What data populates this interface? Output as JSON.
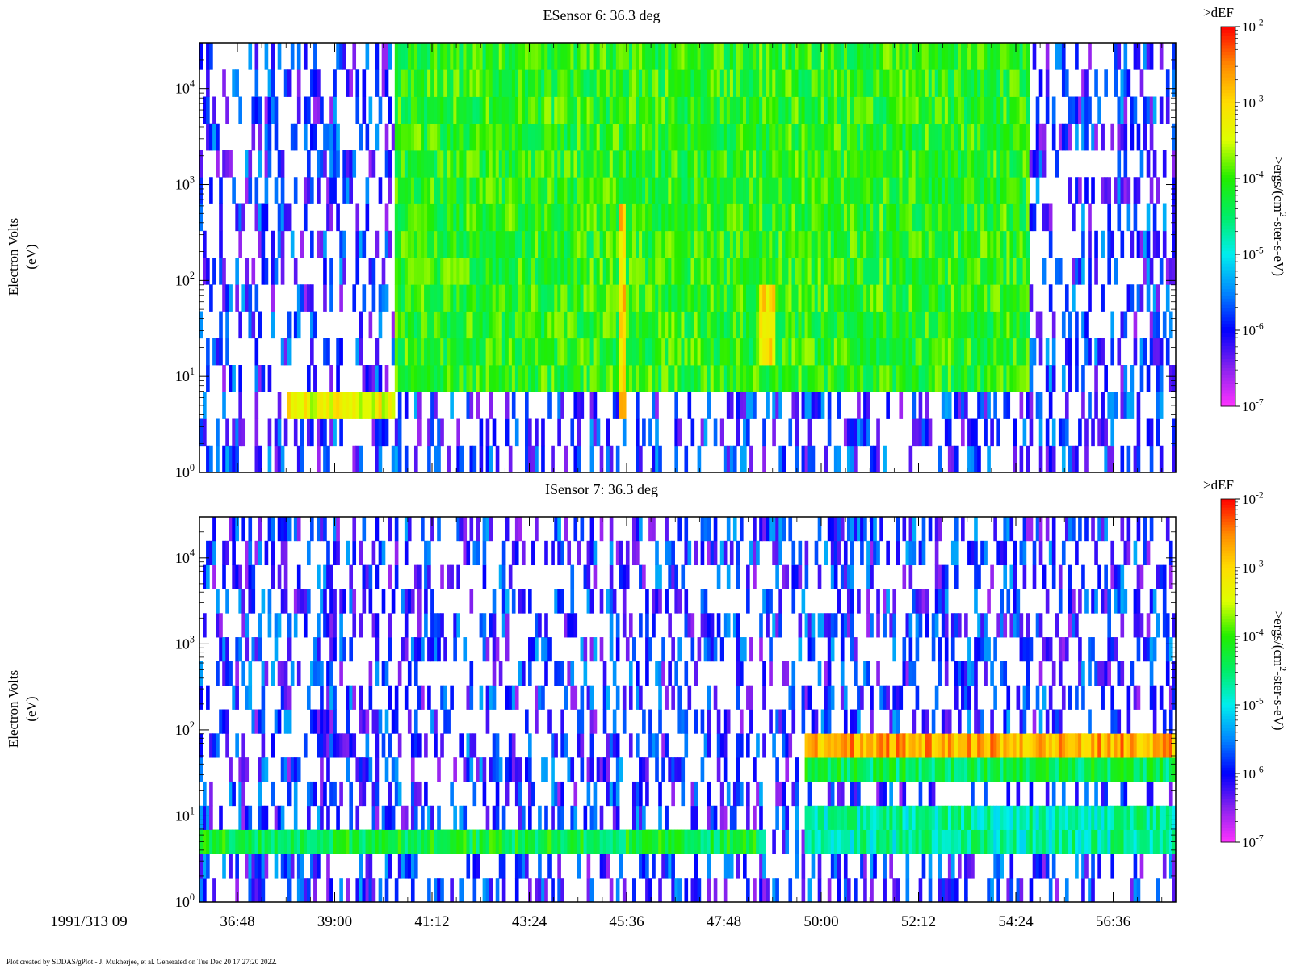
{
  "date_label": "1991/313 09",
  "footer": "Plot created by SDDAS/gPlot - J. Mukherjee, et al.  Generated on Tue Dec 20 17:27:20 2022.",
  "chart_data": [
    {
      "type": "heatmap",
      "title": "ESensor 6: 36.3 deg",
      "ylabel": "Electron Volts",
      "ylabel_unit": "(eV)",
      "yscale": "log",
      "ylim": [
        1,
        30000
      ],
      "y_ticks": [
        {
          "base": "10",
          "exp": "0"
        },
        {
          "base": "10",
          "exp": "1"
        },
        {
          "base": "10",
          "exp": "2"
        },
        {
          "base": "10",
          "exp": "3"
        },
        {
          "base": "10",
          "exp": "4"
        }
      ],
      "x_ticks": [
        "36:48",
        "39:00",
        "41:12",
        "43:24",
        "45:36",
        "47:48",
        "50:00",
        "52:12",
        "54:24",
        "56:36"
      ],
      "colorbar": {
        "label_top": ">dEF",
        "label": ">ergs/(cm-2-ster-s-eV)",
        "label_parts": [
          ">ergs/(cm",
          "2",
          "-ster-s-eV)"
        ],
        "scale": "log",
        "range": [
          1e-07,
          0.01
        ],
        "ticks": [
          {
            "base": "10",
            "exp": "-2"
          },
          {
            "base": "10",
            "exp": "-3"
          },
          {
            "base": "10",
            "exp": "-4"
          },
          {
            "base": "10",
            "exp": "-5"
          },
          {
            "base": "10",
            "exp": "-6"
          },
          {
            "base": "10",
            "exp": "-7"
          }
        ],
        "colors": [
          "#ff33ff",
          "#8822ee",
          "#0000ff",
          "#0088ff",
          "#00eeee",
          "#00ee66",
          "#22ee00",
          "#ddff00",
          "#ffdd00",
          "#ff8800",
          "#ff0000"
        ]
      },
      "features": [
        {
          "t": [
            0.09,
            0.2
          ],
          "e": [
            0.55,
            0.75
          ],
          "value": 0.0005
        },
        {
          "t": [
            0.09,
            0.2
          ],
          "e": [
            0.75,
            0.85
          ],
          "value": 0.0001
        },
        {
          "t": [
            0.2,
            0.85
          ],
          "e": [
            0.85,
            4.35
          ],
          "value": 8e-05
        },
        {
          "t": [
            0.43,
            0.435
          ],
          "e": [
            0.6,
            2.9
          ],
          "value": 0.001
        },
        {
          "t": [
            0.575,
            0.59
          ],
          "e": [
            1.0,
            2.0
          ],
          "value": 0.0008
        }
      ]
    },
    {
      "type": "heatmap",
      "title": "ISensor 7: 36.3 deg",
      "ylabel": "Electron Volts",
      "ylabel_unit": "(eV)",
      "yscale": "log",
      "ylim": [
        1,
        30000
      ],
      "y_ticks": [
        {
          "base": "10",
          "exp": "0"
        },
        {
          "base": "10",
          "exp": "1"
        },
        {
          "base": "10",
          "exp": "2"
        },
        {
          "base": "10",
          "exp": "3"
        },
        {
          "base": "10",
          "exp": "4"
        }
      ],
      "x_ticks": [
        "36:48",
        "39:00",
        "41:12",
        "43:24",
        "45:36",
        "47:48",
        "50:00",
        "52:12",
        "54:24",
        "56:36"
      ],
      "colorbar": {
        "label_top": ">dEF",
        "label": ">ergs/(cm-2-ster-s-eV)",
        "label_parts": [
          ">ergs/(cm",
          "2",
          "-ster-s-eV)"
        ],
        "scale": "log",
        "range": [
          1e-07,
          0.01
        ],
        "ticks": [
          {
            "base": "10",
            "exp": "-2"
          },
          {
            "base": "10",
            "exp": "-3"
          },
          {
            "base": "10",
            "exp": "-4"
          },
          {
            "base": "10",
            "exp": "-5"
          },
          {
            "base": "10",
            "exp": "-6"
          },
          {
            "base": "10",
            "exp": "-7"
          }
        ],
        "colors": [
          "#ff33ff",
          "#8822ee",
          "#0000ff",
          "#0088ff",
          "#00eeee",
          "#00ee66",
          "#22ee00",
          "#ddff00",
          "#ffdd00",
          "#ff8800",
          "#ff0000"
        ]
      },
      "features": [
        {
          "t": [
            0.0,
            0.58
          ],
          "e": [
            0.45,
            0.7
          ],
          "value": 5e-05
        },
        {
          "t": [
            0.62,
            1.0
          ],
          "e": [
            1.7,
            2.0
          ],
          "value": 0.002
        },
        {
          "t": [
            0.62,
            1.0
          ],
          "e": [
            1.4,
            1.7
          ],
          "value": 4e-05
        },
        {
          "t": [
            0.62,
            1.0
          ],
          "e": [
            0.7,
            1.0
          ],
          "value": 2e-05
        },
        {
          "t": [
            0.62,
            1.0
          ],
          "e": [
            0.45,
            0.7
          ],
          "value": 2e-05
        }
      ]
    }
  ]
}
